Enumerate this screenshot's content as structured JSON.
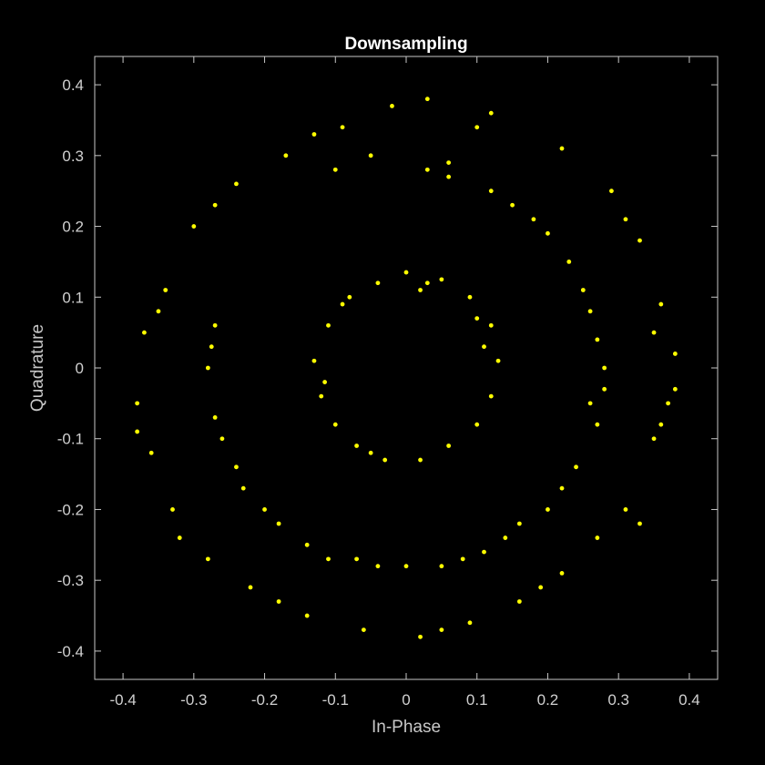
{
  "chart_data": {
    "type": "scatter",
    "title": "Downsampling",
    "xlabel": "In-Phase",
    "ylabel": "Quadrature",
    "xlim": [
      -0.44,
      0.44
    ],
    "ylim": [
      -0.44,
      0.44
    ],
    "xticks": [
      -0.4,
      -0.3,
      -0.2,
      -0.1,
      0,
      0.1,
      0.2,
      0.3,
      0.4
    ],
    "yticks": [
      -0.4,
      -0.3,
      -0.2,
      -0.1,
      0,
      0.1,
      0.2,
      0.3,
      0.4
    ],
    "xtick_labels": [
      "-0.4",
      "-0.3",
      "-0.2",
      "-0.1",
      "0",
      "0.1",
      "0.2",
      "0.3",
      "0.4"
    ],
    "ytick_labels": [
      "-0.4",
      "-0.3",
      "-0.2",
      "-0.1",
      "0",
      "0.1",
      "0.2",
      "0.3",
      "0.4"
    ],
    "grid": false,
    "marker_color": "#ffff00",
    "background_color": "#000000",
    "axis_color": "#c8c8c8",
    "series": [
      {
        "points": [
          [
            0.0,
            0.135
          ],
          [
            0.05,
            0.125
          ],
          [
            0.09,
            0.1
          ],
          [
            0.12,
            0.06
          ],
          [
            0.13,
            0.01
          ],
          [
            0.12,
            -0.04
          ],
          [
            0.1,
            -0.08
          ],
          [
            0.06,
            -0.11
          ],
          [
            0.02,
            -0.13
          ],
          [
            -0.03,
            -0.13
          ],
          [
            -0.07,
            -0.11
          ],
          [
            -0.1,
            -0.08
          ],
          [
            -0.12,
            -0.04
          ],
          [
            -0.13,
            0.01
          ],
          [
            -0.11,
            0.06
          ],
          [
            -0.08,
            0.1
          ],
          [
            -0.04,
            0.12
          ],
          [
            0.03,
            0.12
          ],
          [
            0.11,
            0.03
          ],
          [
            -0.115,
            -0.02
          ],
          [
            0.02,
            0.11
          ],
          [
            -0.05,
            -0.12
          ],
          [
            0.1,
            0.07
          ],
          [
            -0.09,
            0.09
          ],
          [
            0.28,
            0.0
          ],
          [
            0.27,
            -0.08
          ],
          [
            0.24,
            -0.14
          ],
          [
            0.2,
            -0.2
          ],
          [
            0.14,
            -0.24
          ],
          [
            0.08,
            -0.27
          ],
          [
            0.0,
            -0.28
          ],
          [
            -0.07,
            -0.27
          ],
          [
            -0.14,
            -0.25
          ],
          [
            -0.2,
            -0.2
          ],
          [
            -0.24,
            -0.14
          ],
          [
            -0.27,
            -0.07
          ],
          [
            -0.28,
            0.0
          ],
          [
            -0.27,
            0.06
          ],
          [
            0.26,
            0.08
          ],
          [
            0.23,
            0.15
          ],
          [
            0.18,
            0.21
          ],
          [
            0.12,
            0.25
          ],
          [
            0.06,
            0.27
          ],
          [
            0.26,
            -0.05
          ],
          [
            0.22,
            -0.17
          ],
          [
            0.16,
            -0.22
          ],
          [
            -0.04,
            -0.28
          ],
          [
            -0.18,
            -0.22
          ],
          [
            -0.26,
            -0.1
          ],
          [
            0.27,
            0.04
          ],
          [
            -0.11,
            -0.27
          ],
          [
            0.11,
            -0.26
          ],
          [
            0.2,
            0.19
          ],
          [
            0.25,
            0.11
          ],
          [
            0.15,
            0.23
          ],
          [
            0.05,
            -0.28
          ],
          [
            -0.23,
            -0.17
          ],
          [
            0.03,
            0.28
          ],
          [
            -0.275,
            0.03
          ],
          [
            0.28,
            -0.03
          ],
          [
            -0.38,
            -0.05
          ],
          [
            -0.36,
            -0.12
          ],
          [
            -0.33,
            -0.2
          ],
          [
            -0.28,
            -0.27
          ],
          [
            -0.22,
            -0.31
          ],
          [
            -0.14,
            -0.35
          ],
          [
            -0.06,
            -0.37
          ],
          [
            0.02,
            -0.38
          ],
          [
            0.09,
            -0.36
          ],
          [
            0.16,
            -0.33
          ],
          [
            0.22,
            -0.29
          ],
          [
            -0.37,
            0.05
          ],
          [
            -0.34,
            0.11
          ],
          [
            -0.3,
            0.2
          ],
          [
            -0.24,
            0.26
          ],
          [
            -0.17,
            0.3
          ],
          [
            -0.09,
            0.34
          ],
          [
            -0.02,
            0.37
          ],
          [
            0.03,
            0.38
          ],
          [
            0.12,
            0.36
          ],
          [
            0.22,
            0.31
          ],
          [
            0.29,
            0.25
          ],
          [
            0.33,
            0.18
          ],
          [
            0.36,
            0.09
          ],
          [
            0.38,
            0.02
          ],
          [
            0.37,
            -0.05
          ],
          [
            0.35,
            -0.1
          ],
          [
            0.31,
            -0.2
          ],
          [
            0.33,
            -0.22
          ],
          [
            -0.1,
            0.28
          ],
          [
            -0.05,
            0.3
          ],
          [
            0.06,
            0.29
          ],
          [
            0.35,
            0.05
          ],
          [
            0.36,
            -0.08
          ],
          [
            -0.38,
            -0.09
          ],
          [
            -0.32,
            -0.24
          ],
          [
            -0.18,
            -0.33
          ],
          [
            0.05,
            -0.37
          ],
          [
            0.19,
            -0.31
          ],
          [
            -0.27,
            0.23
          ],
          [
            0.31,
            0.21
          ],
          [
            -0.13,
            0.33
          ],
          [
            0.1,
            0.34
          ],
          [
            -0.35,
            0.08
          ],
          [
            0.38,
            -0.03
          ],
          [
            0.27,
            -0.24
          ]
        ]
      }
    ]
  }
}
